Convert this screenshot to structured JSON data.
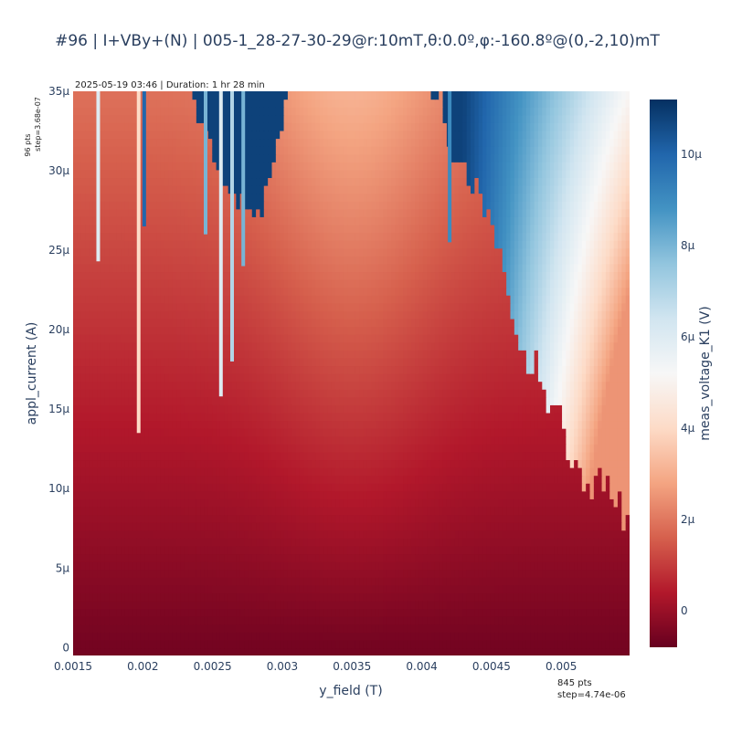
{
  "chart_data": {
    "type": "heatmap",
    "title": "#96 | I+VBy+(N) | 005-1_28-27-30-29@r:10mT,θ:0.0º,φ:-160.8º@(0,-2,10)mT",
    "subtitle": "2025-05-19 03:46 | Duration: 1 hr 28 min",
    "xlabel": "y_field (T)",
    "ylabel": "appl_current (A)",
    "colorbar_label": "meas_voltage_K1 (V)",
    "xlim": [
      0.0015,
      0.00549
    ],
    "ylim": [
      -5e-07,
      3.5e-05
    ],
    "zlim": [
      -8e-07,
      1.12e-05
    ],
    "x_ticks": [
      {
        "value": 0.0015,
        "label": "0.0015"
      },
      {
        "value": 0.002,
        "label": "0.002"
      },
      {
        "value": 0.0025,
        "label": "0.0025"
      },
      {
        "value": 0.003,
        "label": "0.003"
      },
      {
        "value": 0.0035,
        "label": "0.0035"
      },
      {
        "value": 0.004,
        "label": "0.004"
      },
      {
        "value": 0.0045,
        "label": "0.0045"
      },
      {
        "value": 0.005,
        "label": "0.005"
      }
    ],
    "y_ticks": [
      {
        "value": 0,
        "label": "0"
      },
      {
        "value": 5e-06,
        "label": "5μ"
      },
      {
        "value": 1e-05,
        "label": "10μ"
      },
      {
        "value": 1.5e-05,
        "label": "15μ"
      },
      {
        "value": 2e-05,
        "label": "20μ"
      },
      {
        "value": 2.5e-05,
        "label": "25μ"
      },
      {
        "value": 3e-05,
        "label": "30μ"
      },
      {
        "value": 3.5e-05,
        "label": "35μ"
      }
    ],
    "colorbar_ticks": [
      {
        "value": 0,
        "label": "0"
      },
      {
        "value": 2e-06,
        "label": "2μ"
      },
      {
        "value": 4e-06,
        "label": "4μ"
      },
      {
        "value": 6e-06,
        "label": "6μ"
      },
      {
        "value": 8e-06,
        "label": "8μ"
      },
      {
        "value": 1e-05,
        "label": "10μ"
      }
    ],
    "y_points_note": "96 pts",
    "y_step_note": "step=3.68e-07",
    "x_points_note": "845 pts",
    "x_step_note": "step=4.74e-06",
    "colorscale": [
      "#67001f",
      "#b2182b",
      "#d6604d",
      "#f4a582",
      "#fddbc7",
      "#f7f7f7",
      "#d1e5f0",
      "#92c5de",
      "#4393c3",
      "#2166ac",
      "#053061"
    ],
    "switching_boundary": [
      {
        "x": 0.0015,
        "y": 3.7e-05
      },
      {
        "x": 0.0022,
        "y": 3.7e-05
      },
      {
        "x": 0.0024,
        "y": 3.3e-05
      },
      {
        "x": 0.0026,
        "y": 3e-05
      },
      {
        "x": 0.00275,
        "y": 2.62e-05
      },
      {
        "x": 0.00285,
        "y": 2.7e-05
      },
      {
        "x": 0.003,
        "y": 3.35e-05
      },
      {
        "x": 0.0031,
        "y": 3.7e-05
      },
      {
        "x": 0.0039,
        "y": 3.7e-05
      },
      {
        "x": 0.0041,
        "y": 3.4e-05
      },
      {
        "x": 0.0043,
        "y": 3.1e-05
      },
      {
        "x": 0.0045,
        "y": 2.6e-05
      },
      {
        "x": 0.0047,
        "y": 2e-05
      },
      {
        "x": 0.0049,
        "y": 1.5e-05
      },
      {
        "x": 0.0051,
        "y": 1.2e-05
      },
      {
        "x": 0.0053,
        "y": 9.5e-06
      },
      {
        "x": 0.00549,
        "y": 8.5e-06
      }
    ],
    "spikes": [
      {
        "x": 0.00168,
        "y_min": 2.43e-05,
        "z": 6e-06
      },
      {
        "x": 0.00197,
        "y_min": 1.35e-05,
        "z": 4e-06
      },
      {
        "x": 0.00201,
        "y_min": 2.65e-05,
        "z": 1e-05
      },
      {
        "x": 0.00245,
        "y_min": 2.6e-05,
        "z": 8e-06
      },
      {
        "x": 0.00256,
        "y_min": 1.58e-05,
        "z": 6e-06
      },
      {
        "x": 0.00264,
        "y_min": 1.8e-05,
        "z": 7e-06
      },
      {
        "x": 0.00272,
        "y_min": 2.4e-05,
        "z": 8e-06
      },
      {
        "x": 0.0042,
        "y_min": 2.55e-05,
        "z": 9e-06
      }
    ]
  }
}
